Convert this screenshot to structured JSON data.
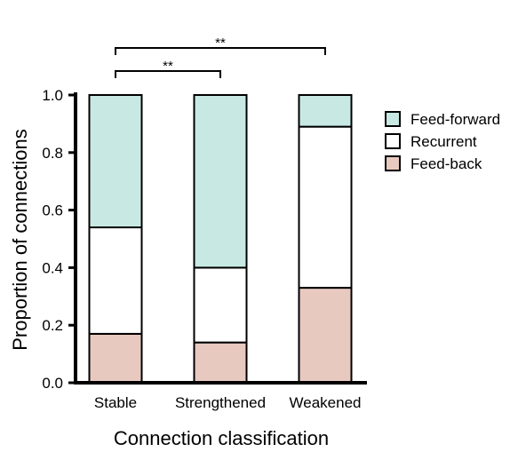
{
  "chart_data": {
    "type": "bar",
    "stacked": true,
    "categories": [
      "Stable",
      "Strengthened",
      "Weakened"
    ],
    "series": [
      {
        "name": "Feed-back",
        "values": [
          0.17,
          0.14,
          0.33
        ],
        "color": "#e8c9bf"
      },
      {
        "name": "Recurrent",
        "values": [
          0.37,
          0.26,
          0.56
        ],
        "color": "#ffffff"
      },
      {
        "name": "Feed-forward",
        "values": [
          0.46,
          0.6,
          0.11
        ],
        "color": "#c8e9e3"
      }
    ],
    "xlabel": "Connection classification",
    "ylabel": "Proportion of connections",
    "ylim": [
      0,
      1.0
    ],
    "yticks": [
      "0.0",
      "0.2",
      "0.4",
      "0.6",
      "0.8",
      "1.0"
    ],
    "grid": false,
    "legend": {
      "position": "top-right",
      "order": [
        "Feed-forward",
        "Recurrent",
        "Feed-back"
      ]
    },
    "significance": [
      {
        "from": "Stable",
        "to": "Strengthened",
        "label": "**"
      },
      {
        "from": "Stable",
        "to": "Weakened",
        "label": "**"
      }
    ]
  }
}
